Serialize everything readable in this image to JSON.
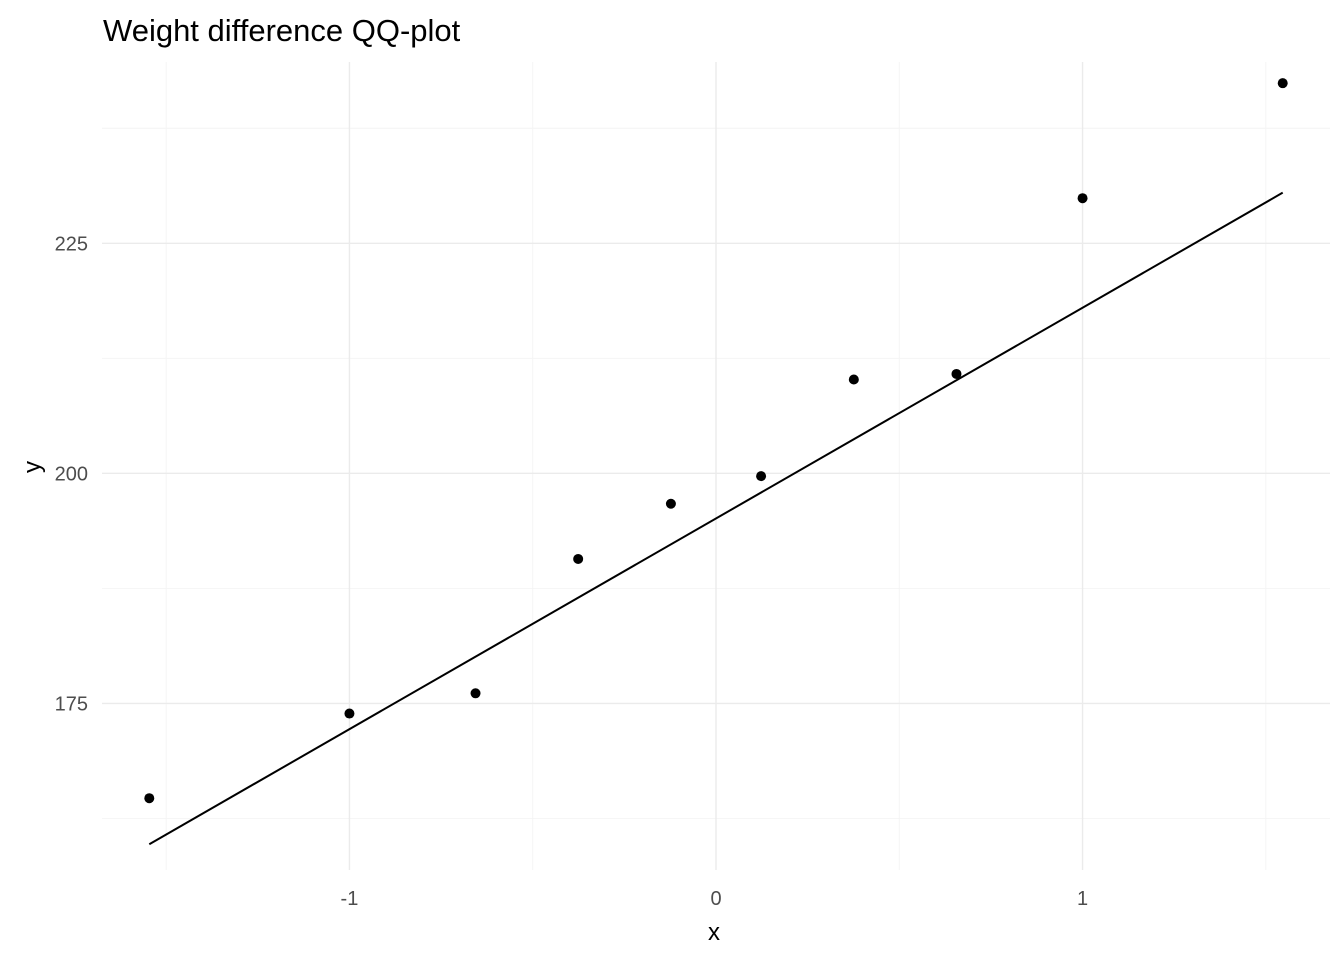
{
  "chart_data": {
    "type": "scatter",
    "title": "Weight difference QQ-plot",
    "xlabel": "x",
    "ylabel": "y",
    "xlim": [
      -1.675,
      1.675
    ],
    "ylim": [
      156.9,
      244.7
    ],
    "x_ticks": [
      -1,
      0,
      1
    ],
    "x_tick_labels": [
      "-1",
      "0",
      "1"
    ],
    "y_ticks": [
      175,
      200,
      225
    ],
    "y_tick_labels": [
      "175",
      "200",
      "225"
    ],
    "grid": true,
    "legend": "none",
    "points": [
      {
        "x": -1.546,
        "y": 164.7
      },
      {
        "x": -1.0,
        "y": 173.9
      },
      {
        "x": -0.656,
        "y": 176.1
      },
      {
        "x": -0.376,
        "y": 190.7
      },
      {
        "x": -0.123,
        "y": 196.7
      },
      {
        "x": 0.123,
        "y": 199.7
      },
      {
        "x": 0.376,
        "y": 210.2
      },
      {
        "x": 0.656,
        "y": 210.8
      },
      {
        "x": 1.0,
        "y": 229.9
      },
      {
        "x": 1.546,
        "y": 242.4
      }
    ],
    "reference_line": {
      "x": [
        -1.546,
        1.546
      ],
      "y": [
        159.7,
        230.5
      ]
    },
    "colors": {
      "points": "#000000",
      "line": "#000000",
      "grid": "#ebebeb"
    }
  }
}
